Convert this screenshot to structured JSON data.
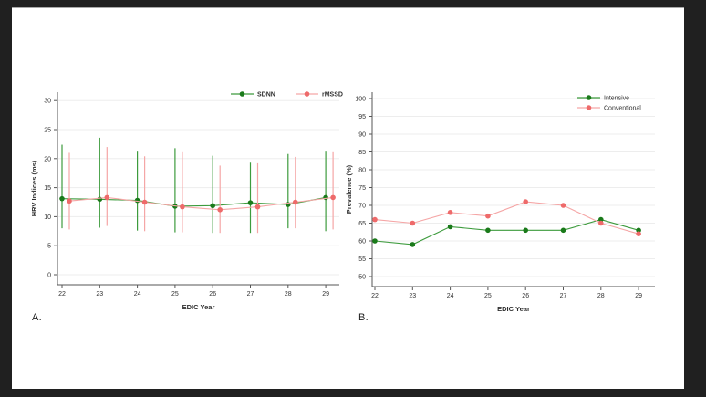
{
  "frame": {
    "background": "#202020",
    "panel_background": "#ffffff"
  },
  "panel_labels": {
    "a": "A.",
    "b": "B."
  },
  "colors": {
    "green_line": "#3d9b3d",
    "green_marker": "#1a7a1a",
    "red_line": "#f5a6a6",
    "red_marker": "#ee6a6a",
    "grid": "#ededed",
    "axis": "#555555",
    "text": "#303030"
  },
  "chart_data": [
    {
      "id": "A",
      "type": "line",
      "xlabel": "EDIC Year",
      "ylabel": "HRV Indices (ms)",
      "x": [
        22,
        23,
        24,
        25,
        26,
        27,
        28,
        29
      ],
      "ylim": [
        0,
        30
      ],
      "yticks": [
        0,
        5,
        10,
        15,
        20,
        25,
        30
      ],
      "grid": "horizontal",
      "legend_position": "top-horizontal",
      "series": [
        {
          "name": "SDNN",
          "color_role": "green",
          "values": [
            13.1,
            13.0,
            12.8,
            11.8,
            11.9,
            12.4,
            12.1,
            13.3
          ],
          "error_low": [
            8.0,
            8.1,
            7.6,
            7.3,
            7.2,
            7.2,
            8.0,
            7.5
          ],
          "error_high": [
            22.4,
            23.6,
            21.2,
            21.8,
            20.5,
            19.3,
            20.8,
            21.2
          ]
        },
        {
          "name": "rMSSD",
          "color_role": "red",
          "values": [
            12.7,
            13.3,
            12.5,
            11.7,
            11.2,
            11.7,
            12.5,
            13.3
          ],
          "error_low": [
            7.8,
            8.4,
            7.5,
            7.3,
            7.2,
            7.2,
            8.0,
            7.8
          ],
          "error_high": [
            21.0,
            22.0,
            20.4,
            21.1,
            18.8,
            19.2,
            20.3,
            21.1
          ]
        }
      ]
    },
    {
      "id": "B",
      "type": "line",
      "xlabel": "EDIC Year",
      "ylabel": "Prevalence (%)",
      "x": [
        22,
        23,
        24,
        25,
        26,
        27,
        28,
        29
      ],
      "ylim": [
        50,
        100
      ],
      "yticks": [
        50,
        55,
        60,
        65,
        70,
        75,
        80,
        85,
        90,
        95,
        100
      ],
      "grid": "horizontal",
      "legend_position": "top-right-vertical",
      "series": [
        {
          "name": "Intensive",
          "color_role": "green",
          "values": [
            60,
            59,
            64,
            63,
            63,
            63,
            66,
            63
          ]
        },
        {
          "name": "Conventional",
          "color_role": "red",
          "values": [
            66,
            65,
            68,
            67,
            71,
            70,
            65,
            62
          ]
        }
      ]
    }
  ]
}
